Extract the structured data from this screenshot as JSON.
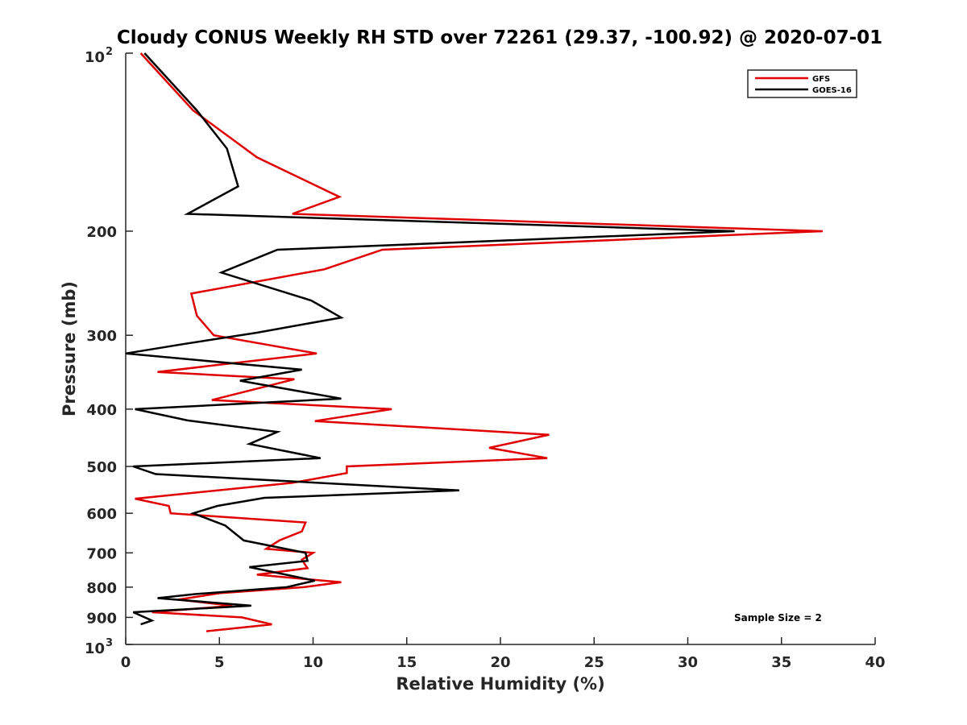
{
  "chart_data": {
    "type": "line",
    "title": "Cloudy CONUS Weekly RH STD over 72261 (29.37, -100.92) @ 2020-07-01",
    "xlabel": "Relative Humidity (%)",
    "ylabel": "Pressure (mb)",
    "xlim": [
      0,
      40
    ],
    "ylim": [
      100,
      1000
    ],
    "y_scale": "log",
    "y_reversed": true,
    "grid": false,
    "legend_position": "top-right",
    "x_ticks": [
      "0",
      "5",
      "10",
      "15",
      "20",
      "25",
      "30",
      "35",
      "40"
    ],
    "y_ticks": [
      {
        "value": 100,
        "base": "10",
        "exp": "2"
      },
      {
        "value": 200,
        "label": "200"
      },
      {
        "value": 300,
        "label": "300"
      },
      {
        "value": 400,
        "label": "400"
      },
      {
        "value": 500,
        "label": "500"
      },
      {
        "value": 600,
        "label": "600"
      },
      {
        "value": 700,
        "label": "700"
      },
      {
        "value": 800,
        "label": "800"
      },
      {
        "value": 900,
        "label": "900"
      },
      {
        "value": 1000,
        "base": "10",
        "exp": "3"
      }
    ],
    "annotation": "Sample Size = 2",
    "series": [
      {
        "name": "GFS",
        "color": "#e00000",
        "points": [
          [
            0.8,
            100
          ],
          [
            3.6,
            125
          ],
          [
            7.0,
            150
          ],
          [
            11.4,
            175
          ],
          [
            8.9,
            187
          ],
          [
            37.2,
            200
          ],
          [
            13.7,
            215
          ],
          [
            10.6,
            232
          ],
          [
            3.5,
            255
          ],
          [
            3.8,
            278
          ],
          [
            4.7,
            300
          ],
          [
            10.2,
            322
          ],
          [
            1.7,
            346
          ],
          [
            9.0,
            356
          ],
          [
            4.6,
            386
          ],
          [
            14.2,
            400
          ],
          [
            10.1,
            419
          ],
          [
            22.6,
            442
          ],
          [
            19.4,
            465
          ],
          [
            22.5,
            484
          ],
          [
            11.8,
            500
          ],
          [
            11.8,
            513
          ],
          [
            8.9,
            533
          ],
          [
            0.5,
            567
          ],
          [
            2.3,
            583
          ],
          [
            2.4,
            600
          ],
          [
            9.6,
            622
          ],
          [
            9.4,
            644
          ],
          [
            8.2,
            667
          ],
          [
            7.5,
            689
          ],
          [
            10.0,
            700
          ],
          [
            9.4,
            719
          ],
          [
            9.7,
            743
          ],
          [
            7.0,
            762
          ],
          [
            11.5,
            785
          ],
          [
            9.5,
            800
          ],
          [
            5.0,
            819
          ],
          [
            2.8,
            840
          ],
          [
            5.7,
            860
          ],
          [
            1.4,
            882
          ],
          [
            6.2,
            900
          ],
          [
            7.8,
            925
          ],
          [
            4.3,
            950
          ]
        ]
      },
      {
        "name": "GOES-16",
        "color": "#000000",
        "points": [
          [
            1.0,
            100
          ],
          [
            3.8,
            125
          ],
          [
            5.4,
            145
          ],
          [
            6.0,
            168
          ],
          [
            3.3,
            187
          ],
          [
            32.5,
            200
          ],
          [
            8.1,
            215
          ],
          [
            5.1,
            235
          ],
          [
            9.9,
            262
          ],
          [
            11.5,
            280
          ],
          [
            7.0,
            297
          ],
          [
            3.2,
            310
          ],
          [
            0.0,
            322
          ],
          [
            9.4,
            343
          ],
          [
            6.1,
            358
          ],
          [
            11.5,
            384
          ],
          [
            0.5,
            400
          ],
          [
            3.3,
            418
          ],
          [
            8.1,
            437
          ],
          [
            6.6,
            458
          ],
          [
            10.4,
            484
          ],
          [
            0.4,
            500
          ],
          [
            1.6,
            515
          ],
          [
            17.8,
            549
          ],
          [
            7.4,
            565
          ],
          [
            4.9,
            583
          ],
          [
            3.6,
            600
          ],
          [
            5.3,
            629
          ],
          [
            6.3,
            667
          ],
          [
            9.6,
            700
          ],
          [
            9.7,
            722
          ],
          [
            6.6,
            740
          ],
          [
            10.1,
            780
          ],
          [
            8.6,
            800
          ],
          [
            3.7,
            822
          ],
          [
            1.7,
            835
          ],
          [
            6.7,
            860
          ],
          [
            0.4,
            882
          ],
          [
            1.4,
            911
          ],
          [
            0.8,
            925
          ]
        ]
      }
    ]
  }
}
